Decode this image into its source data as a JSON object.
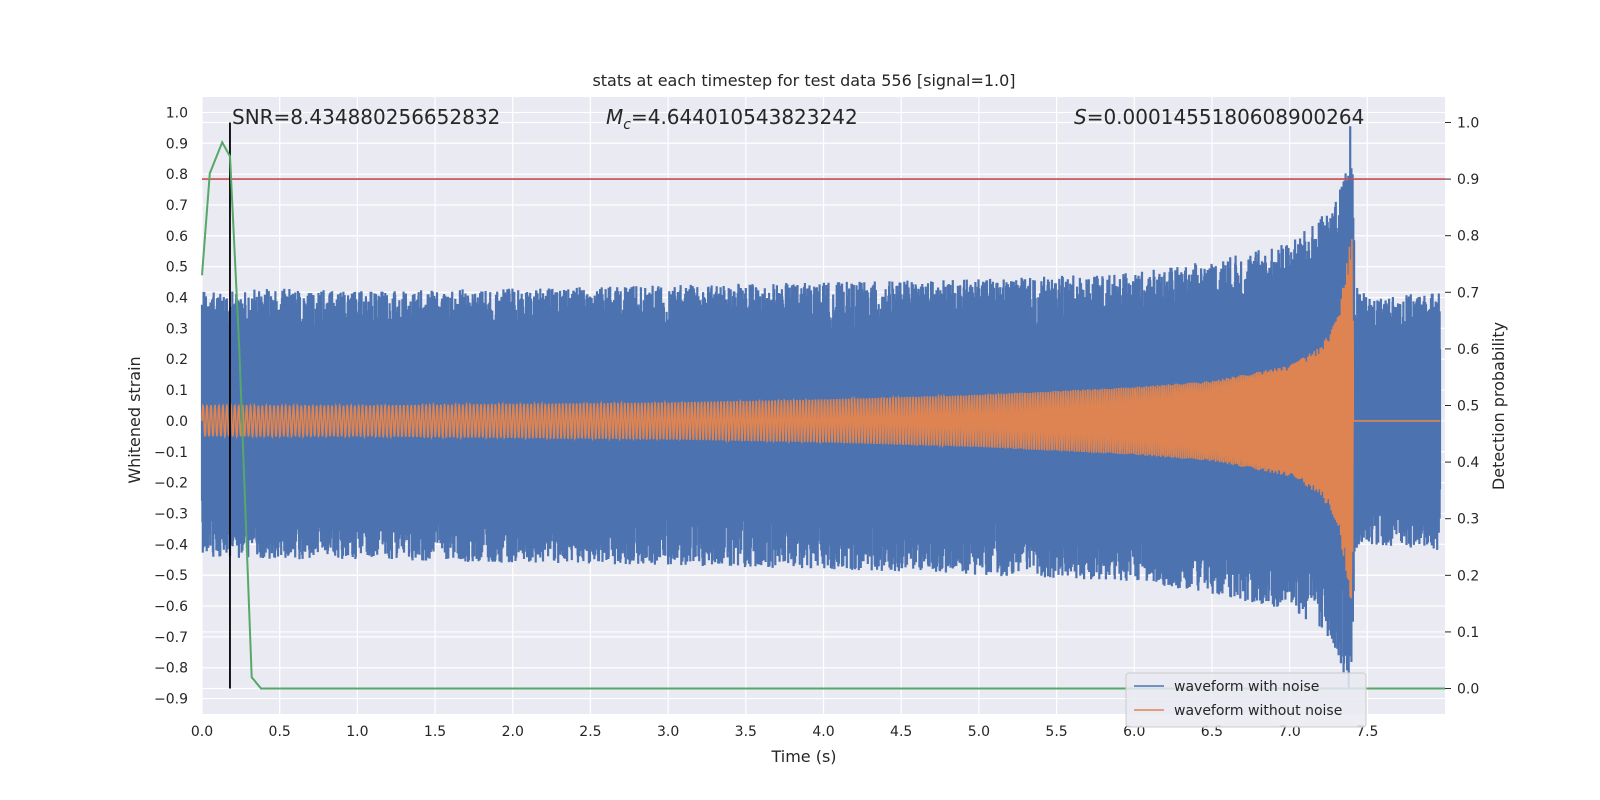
{
  "chart_data": {
    "type": "line",
    "title": "stats at each timestep for test data 556 [signal=1.0]",
    "xlabel": "Time (s)",
    "ylabel": "Whitened strain",
    "ylabel_right": "Detection probability",
    "xlim": [
      0.0,
      8.0
    ],
    "ylim": [
      -0.95,
      1.05
    ],
    "ylim_right": [
      -0.045,
      1.045
    ],
    "xticks": [
      "0.0",
      "0.5",
      "1.0",
      "1.5",
      "2.0",
      "2.5",
      "3.0",
      "3.5",
      "4.0",
      "4.5",
      "5.0",
      "5.5",
      "6.0",
      "6.5",
      "7.0",
      "7.5"
    ],
    "yticks": [
      "1.0",
      "0.9",
      "0.8",
      "0.7",
      "0.6",
      "0.5",
      "0.4",
      "0.3",
      "0.2",
      "0.1",
      "0.0",
      "−0.1",
      "−0.2",
      "−0.3",
      "−0.4",
      "−0.5",
      "−0.6",
      "−0.7",
      "−0.8",
      "−0.9"
    ],
    "yticks_right": [
      "1.0",
      "0.9",
      "0.8",
      "0.7",
      "0.6",
      "0.5",
      "0.4",
      "0.3",
      "0.2",
      "0.1",
      "0.0"
    ],
    "annotations": {
      "snr": "SNR=8.434880256652832",
      "mc_symbol": "M",
      "mc_sub": "c",
      "mc_value": "=4.644010543823242",
      "s_symbol": "S",
      "s_value": "=0.0001455180608900264"
    },
    "grid": true,
    "legend_placement": "lower-right",
    "series": [
      {
        "name": "waveform with noise",
        "color": "#4c72b0",
        "envelope": {
          "t": [
            0.0,
            0.5,
            1.0,
            2.0,
            3.0,
            4.0,
            5.0,
            6.0,
            6.5,
            7.0,
            7.2,
            7.3,
            7.35,
            7.4,
            7.42,
            7.5,
            8.0
          ],
          "upper": [
            0.42,
            0.43,
            0.42,
            0.43,
            0.44,
            0.45,
            0.46,
            0.48,
            0.52,
            0.58,
            0.66,
            0.72,
            0.8,
            1.0,
            0.45,
            0.4,
            0.42
          ],
          "lower": [
            -0.44,
            -0.45,
            -0.45,
            -0.46,
            -0.47,
            -0.48,
            -0.5,
            -0.52,
            -0.56,
            -0.62,
            -0.68,
            -0.75,
            -0.82,
            -0.9,
            -0.42,
            -0.4,
            -0.42
          ]
        }
      },
      {
        "name": "waveform without noise",
        "color": "#dd8452",
        "envelope": {
          "t": [
            0.0,
            1.0,
            2.0,
            3.0,
            4.0,
            5.0,
            6.0,
            6.5,
            7.0,
            7.2,
            7.3,
            7.35,
            7.4,
            7.42,
            7.5,
            8.0
          ],
          "amplitude": [
            0.05,
            0.05,
            0.055,
            0.06,
            0.07,
            0.085,
            0.11,
            0.13,
            0.18,
            0.24,
            0.33,
            0.45,
            0.62,
            0.01,
            0.0,
            0.0
          ]
        }
      },
      {
        "name": "detection probability",
        "color": "#55a868",
        "axis": "right",
        "x": [
          0.0,
          0.05,
          0.13,
          0.18,
          0.24,
          0.32,
          0.38,
          0.45,
          8.0
        ],
        "y": [
          0.73,
          0.91,
          0.965,
          0.94,
          0.6,
          0.02,
          0.0,
          0.0,
          0.0
        ]
      }
    ],
    "threshold_right": {
      "y": 0.9,
      "color": "#c44e52"
    },
    "vline": {
      "x": 0.18,
      "color": "#000000"
    }
  }
}
